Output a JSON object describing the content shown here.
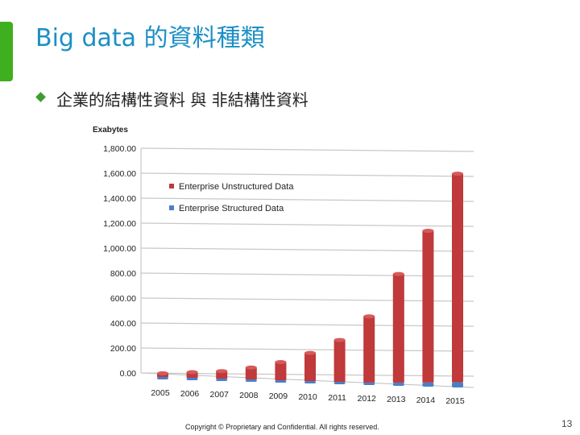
{
  "slide": {
    "title": "Big data 的資料種類",
    "bullet": "企業的結構性資料 與 非結構性資料",
    "footer": "Copyright © Proprietary and Confidential. All rights reserved.",
    "page_number": "13"
  },
  "colors": {
    "title": "#1b8fc4",
    "accent": "#3fae1f",
    "unstructured": "#c0393b",
    "structured": "#4a7fc8"
  },
  "chart_data": {
    "type": "bar",
    "ylabel": "Exabytes",
    "ylim": [
      0,
      1800
    ],
    "yticks": [
      "0.00",
      "200.00",
      "400.00",
      "600.00",
      "800.00",
      "1,000.00",
      "1,200.00",
      "1,400.00",
      "1,600.00",
      "1,800.00"
    ],
    "ytick_values": [
      0,
      200,
      400,
      600,
      800,
      1000,
      1200,
      1400,
      1600,
      1800
    ],
    "categories": [
      "2005",
      "2006",
      "2007",
      "2008",
      "2009",
      "2010",
      "2011",
      "2012",
      "2013",
      "2014",
      "2015"
    ],
    "series": [
      {
        "name": "Enterprise Unstructured Data",
        "values": [
          30,
          45,
          60,
          95,
          145,
          225,
          335,
          530,
          870,
          1215,
          1670
        ]
      },
      {
        "name": "Enterprise Structured Data",
        "values": [
          2,
          3,
          4,
          6,
          8,
          11,
          15,
          20,
          26,
          33,
          42
        ]
      }
    ],
    "legend_position": "top-left",
    "grid": true
  }
}
